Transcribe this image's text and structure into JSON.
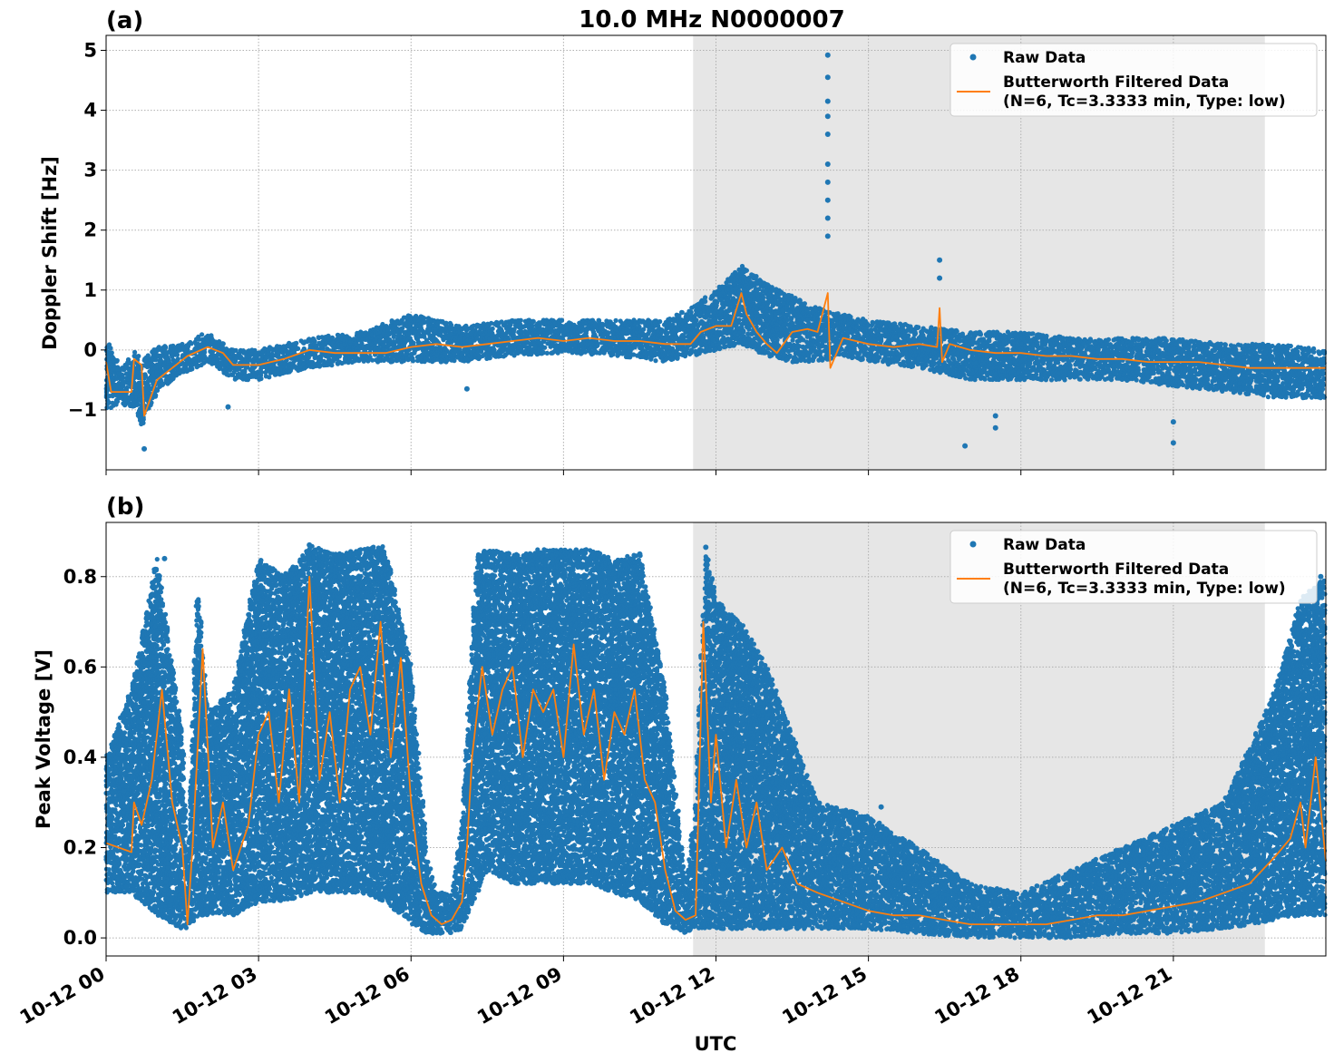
{
  "figure": {
    "title": "10.0 MHz N0000007",
    "xlabel": "UTC",
    "x_tick_labels": [
      "10-12 00",
      "10-12 03",
      "10-12 06",
      "10-12 09",
      "10-12 12",
      "10-12 15",
      "10-12 18",
      "10-12 21"
    ]
  },
  "legend": {
    "raw_label": "Raw Data",
    "filtered_label_line1": "Butterworth Filtered Data",
    "filtered_label_line2": "(N=6, Tc=3.3333 min, Type: low)"
  },
  "colors": {
    "raw": "#1f77b4",
    "filtered": "#ff7f0e",
    "shade": "#e6e6e6",
    "grid": "#b0b0b0"
  },
  "chart_data": [
    {
      "type": "line",
      "panel_label": "(a)",
      "title": "10.0 MHz N0000007",
      "xlabel": "",
      "ylabel": "Doppler Shift [Hz]",
      "x_unit": "hours UTC on 10-12",
      "xlim": [
        0,
        24
      ],
      "ylim": [
        -2.0,
        5.25
      ],
      "y_ticks": [
        -1,
        0,
        1,
        2,
        3,
        4,
        5
      ],
      "y_tick_labels": [
        "−1",
        "0",
        "1",
        "2",
        "3",
        "4",
        "5"
      ],
      "grid": true,
      "legend_position": "top-right",
      "shaded_region": [
        11.55,
        22.8
      ],
      "series": [
        {
          "name": "Raw Data",
          "style": "scatter",
          "band": {
            "x": [
              0,
              0.3,
              0.6,
              0.7,
              1.0,
              1.5,
              2.0,
              2.5,
              3.0,
              4.0,
              5.0,
              6.0,
              7.0,
              8.0,
              9.0,
              10.0,
              11.0,
              11.5,
              12.0,
              12.5,
              13.0,
              13.5,
              14.0,
              14.5,
              15.0,
              16.0,
              17.0,
              18.0,
              19.0,
              20.0,
              21.0,
              22.0,
              23.0,
              24.0
            ],
            "lo": [
              -1.0,
              -0.9,
              -1.0,
              -1.3,
              -0.7,
              -0.4,
              -0.2,
              -0.5,
              -0.5,
              -0.3,
              -0.2,
              -0.2,
              -0.2,
              -0.1,
              -0.05,
              -0.1,
              -0.2,
              -0.1,
              0.0,
              0.1,
              -0.1,
              -0.2,
              -0.2,
              -0.1,
              -0.2,
              -0.3,
              -0.5,
              -0.5,
              -0.5,
              -0.5,
              -0.6,
              -0.7,
              -0.8,
              -0.8
            ],
            "hi": [
              0.2,
              -0.3,
              0.0,
              -0.2,
              0.05,
              0.1,
              0.3,
              0.0,
              0.0,
              0.2,
              0.3,
              0.6,
              0.4,
              0.5,
              0.5,
              0.5,
              0.5,
              0.7,
              1.0,
              1.4,
              1.1,
              0.9,
              0.7,
              0.6,
              0.5,
              0.4,
              0.3,
              0.3,
              0.2,
              0.2,
              0.2,
              0.1,
              0.1,
              0.0
            ]
          },
          "outliers": [
            {
              "x": 0.75,
              "y": -1.65
            },
            {
              "x": 2.4,
              "y": -0.95
            },
            {
              "x": 7.1,
              "y": -0.65
            },
            {
              "x": 14.2,
              "y": 4.92
            },
            {
              "x": 14.2,
              "y": 4.55
            },
            {
              "x": 14.2,
              "y": 4.15
            },
            {
              "x": 14.2,
              "y": 3.9
            },
            {
              "x": 14.2,
              "y": 3.6
            },
            {
              "x": 14.2,
              "y": 3.1
            },
            {
              "x": 14.2,
              "y": 2.8
            },
            {
              "x": 14.2,
              "y": 2.5
            },
            {
              "x": 14.2,
              "y": 2.2
            },
            {
              "x": 14.2,
              "y": 1.9
            },
            {
              "x": 16.4,
              "y": 1.5
            },
            {
              "x": 16.4,
              "y": 1.2
            },
            {
              "x": 16.9,
              "y": -1.6
            },
            {
              "x": 17.5,
              "y": -1.1
            },
            {
              "x": 17.5,
              "y": -1.3
            },
            {
              "x": 21.0,
              "y": -1.2
            },
            {
              "x": 21.0,
              "y": -1.55
            }
          ]
        },
        {
          "name": "Butterworth Filtered Data\n(N=6, Tc=3.3333 min, Type: low)",
          "style": "line",
          "x": [
            0,
            0.1,
            0.5,
            0.55,
            0.7,
            0.75,
            1.0,
            1.3,
            1.6,
            2.0,
            2.3,
            2.5,
            2.8,
            3.0,
            3.5,
            4.0,
            4.5,
            5.0,
            5.5,
            6.0,
            6.5,
            7.0,
            7.5,
            8.0,
            8.5,
            9.0,
            9.5,
            10.0,
            10.5,
            11.0,
            11.5,
            11.7,
            12.0,
            12.3,
            12.5,
            12.6,
            12.8,
            13.0,
            13.2,
            13.5,
            13.8,
            14.0,
            14.2,
            14.25,
            14.5,
            15.0,
            15.5,
            16.0,
            16.35,
            16.4,
            16.45,
            16.6,
            17.0,
            17.5,
            18.0,
            18.5,
            19.0,
            19.5,
            20.0,
            20.5,
            21.0,
            21.5,
            22.0,
            22.5,
            23.0,
            23.5,
            24.0
          ],
          "y": [
            -0.2,
            -0.7,
            -0.7,
            -0.15,
            -0.25,
            -1.1,
            -0.5,
            -0.3,
            -0.1,
            0.05,
            -0.05,
            -0.25,
            -0.25,
            -0.25,
            -0.15,
            0.0,
            -0.05,
            -0.05,
            -0.05,
            0.05,
            0.1,
            0.05,
            0.1,
            0.15,
            0.2,
            0.15,
            0.2,
            0.15,
            0.15,
            0.1,
            0.1,
            0.3,
            0.4,
            0.4,
            0.95,
            0.6,
            0.3,
            0.1,
            -0.05,
            0.3,
            0.35,
            0.3,
            0.95,
            -0.3,
            0.2,
            0.1,
            0.05,
            0.1,
            0.05,
            0.7,
            -0.2,
            0.1,
            0.0,
            -0.05,
            -0.05,
            -0.1,
            -0.1,
            -0.15,
            -0.15,
            -0.2,
            -0.2,
            -0.2,
            -0.25,
            -0.3,
            -0.3,
            -0.3,
            -0.3
          ]
        }
      ]
    },
    {
      "type": "line",
      "panel_label": "(b)",
      "title": "",
      "xlabel": "UTC",
      "ylabel": "Peak Voltage [V]",
      "x_unit": "hours UTC on 10-12",
      "xlim": [
        0,
        24
      ],
      "ylim": [
        -0.04,
        0.92
      ],
      "y_ticks": [
        0.0,
        0.2,
        0.4,
        0.6,
        0.8
      ],
      "y_tick_labels": [
        "0.0",
        "0.2",
        "0.4",
        "0.6",
        "0.8"
      ],
      "grid": true,
      "legend_position": "top-right",
      "shaded_region": [
        11.55,
        22.8
      ],
      "series": [
        {
          "name": "Raw Data",
          "style": "scatter",
          "band": {
            "x": [
              0,
              0.5,
              1.0,
              1.5,
              1.6,
              1.8,
              2.0,
              2.5,
              3.0,
              3.5,
              4.0,
              4.5,
              5.0,
              5.5,
              6.0,
              6.3,
              6.5,
              6.8,
              7.0,
              7.3,
              7.5,
              8.0,
              8.5,
              9.0,
              9.5,
              10.0,
              10.5,
              11.0,
              11.4,
              11.6,
              11.8,
              12.0,
              12.5,
              13.0,
              13.5,
              14.0,
              15.0,
              16.0,
              17.0,
              18.0,
              19.0,
              20.0,
              21.0,
              22.0,
              23.0,
              23.5,
              24.0
            ],
            "lo": [
              0.1,
              0.1,
              0.05,
              0.02,
              0.02,
              0.05,
              0.05,
              0.05,
              0.08,
              0.08,
              0.1,
              0.1,
              0.1,
              0.08,
              0.03,
              0.01,
              0.01,
              0.01,
              0.02,
              0.1,
              0.15,
              0.12,
              0.12,
              0.12,
              0.12,
              0.1,
              0.08,
              0.03,
              0.01,
              0.02,
              0.02,
              0.02,
              0.02,
              0.02,
              0.02,
              0.02,
              0.02,
              0.01,
              0.0,
              0.0,
              0.0,
              0.01,
              0.01,
              0.02,
              0.04,
              0.05,
              0.05
            ],
            "hi": [
              0.4,
              0.55,
              0.84,
              0.45,
              0.15,
              0.8,
              0.5,
              0.55,
              0.84,
              0.8,
              0.87,
              0.85,
              0.86,
              0.87,
              0.6,
              0.2,
              0.1,
              0.1,
              0.25,
              0.85,
              0.86,
              0.85,
              0.86,
              0.86,
              0.86,
              0.84,
              0.85,
              0.55,
              0.12,
              0.3,
              0.86,
              0.75,
              0.7,
              0.6,
              0.45,
              0.3,
              0.27,
              0.2,
              0.12,
              0.1,
              0.15,
              0.2,
              0.25,
              0.3,
              0.55,
              0.75,
              0.8
            ]
          },
          "outliers": [
            {
              "x": 1.15,
              "y": 0.84
            },
            {
              "x": 4.0,
              "y": 0.87
            },
            {
              "x": 10.5,
              "y": 0.85
            },
            {
              "x": 11.8,
              "y": 0.865
            },
            {
              "x": 15.25,
              "y": 0.29
            },
            {
              "x": 23.9,
              "y": 0.8
            }
          ]
        },
        {
          "name": "Butterworth Filtered Data\n(N=6, Tc=3.3333 min, Type: low)",
          "style": "line",
          "x": [
            0,
            0.5,
            0.55,
            0.7,
            0.9,
            1.1,
            1.3,
            1.5,
            1.6,
            1.7,
            1.9,
            2.1,
            2.3,
            2.5,
            2.8,
            3.0,
            3.2,
            3.4,
            3.6,
            3.8,
            4.0,
            4.2,
            4.4,
            4.6,
            4.8,
            5.0,
            5.2,
            5.4,
            5.6,
            5.8,
            6.0,
            6.2,
            6.4,
            6.6,
            6.8,
            7.0,
            7.1,
            7.2,
            7.4,
            7.6,
            7.8,
            8.0,
            8.2,
            8.4,
            8.6,
            8.8,
            9.0,
            9.2,
            9.4,
            9.6,
            9.8,
            10.0,
            10.2,
            10.4,
            10.6,
            10.8,
            11.0,
            11.2,
            11.4,
            11.6,
            11.75,
            11.9,
            12.0,
            12.2,
            12.4,
            12.6,
            12.8,
            13.0,
            13.3,
            13.6,
            14.0,
            14.5,
            15.0,
            15.5,
            16.0,
            16.5,
            17.0,
            17.5,
            18.0,
            18.5,
            19.0,
            19.5,
            20.0,
            20.5,
            21.0,
            21.5,
            22.0,
            22.5,
            23.0,
            23.3,
            23.5,
            23.6,
            23.8,
            24.0
          ],
          "y": [
            0.21,
            0.19,
            0.3,
            0.25,
            0.35,
            0.55,
            0.3,
            0.2,
            0.03,
            0.2,
            0.64,
            0.2,
            0.3,
            0.15,
            0.25,
            0.45,
            0.5,
            0.3,
            0.55,
            0.3,
            0.8,
            0.35,
            0.5,
            0.3,
            0.55,
            0.6,
            0.45,
            0.7,
            0.4,
            0.62,
            0.3,
            0.12,
            0.05,
            0.03,
            0.04,
            0.08,
            0.2,
            0.4,
            0.6,
            0.45,
            0.55,
            0.6,
            0.4,
            0.55,
            0.5,
            0.55,
            0.4,
            0.65,
            0.45,
            0.55,
            0.35,
            0.5,
            0.45,
            0.55,
            0.35,
            0.3,
            0.15,
            0.06,
            0.04,
            0.05,
            0.7,
            0.3,
            0.45,
            0.2,
            0.35,
            0.2,
            0.3,
            0.15,
            0.2,
            0.12,
            0.1,
            0.08,
            0.06,
            0.05,
            0.05,
            0.04,
            0.03,
            0.03,
            0.03,
            0.03,
            0.04,
            0.05,
            0.05,
            0.06,
            0.07,
            0.08,
            0.1,
            0.12,
            0.18,
            0.22,
            0.3,
            0.2,
            0.4,
            0.17
          ]
        }
      ]
    }
  ]
}
